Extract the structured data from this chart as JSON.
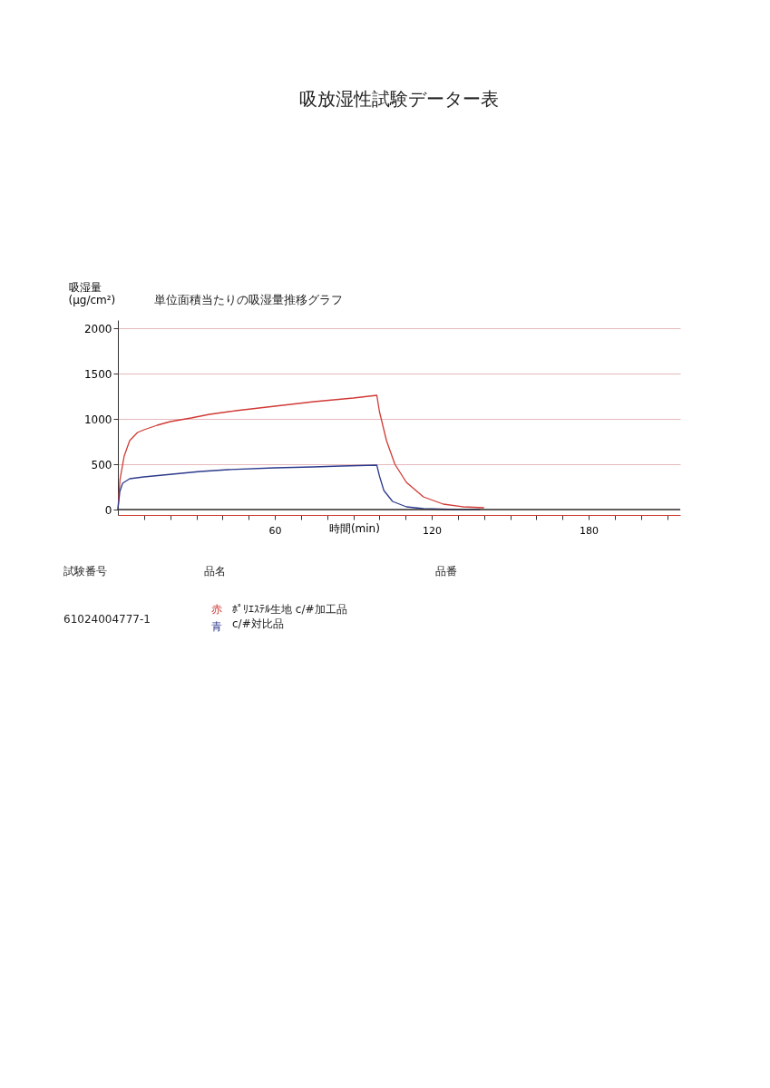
{
  "chart_data": {
    "type": "line",
    "title": "吸放湿性試験データー表",
    "subtitle": "単位面積当たりの吸湿量推移グラフ",
    "xlabel": "時間(min)",
    "ylabel": "吸湿量\n(μg/cm²)",
    "xlim": [
      0,
      215
    ],
    "ylim": [
      -60,
      2090
    ],
    "xticks": [
      {
        "value": 10,
        "label": null
      },
      {
        "value": 20,
        "label": null
      },
      {
        "value": 30,
        "label": null
      },
      {
        "value": 40,
        "label": null
      },
      {
        "value": 50,
        "label": null
      },
      60,
      {
        "value": 70,
        "label": null
      },
      {
        "value": 80,
        "label": null
      },
      {
        "value": 90,
        "label": null
      },
      {
        "value": 100,
        "label": null
      },
      {
        "value": 110,
        "label": null
      },
      120,
      {
        "value": 130,
        "label": null
      },
      {
        "value": 140,
        "label": null
      },
      {
        "value": 150,
        "label": null
      },
      {
        "value": 160,
        "label": null
      },
      {
        "value": 170,
        "label": null
      },
      180,
      {
        "value": 190,
        "label": null
      },
      {
        "value": 200,
        "label": null
      },
      {
        "value": 210,
        "label": null
      }
    ],
    "yticks": [
      0,
      500,
      1000,
      1500,
      2000
    ],
    "grid": "y",
    "line_style": "solid",
    "marker": "none",
    "ref_lines": [
      {
        "axis": "y",
        "value": 0,
        "label": null,
        "color": "#333333"
      }
    ],
    "series": [
      {
        "color": "#d03a35",
        "x": [
          0,
          0.8,
          2.4,
          4.5,
          7.5,
          10,
          15,
          20,
          28,
          35,
          45,
          60,
          75,
          90,
          99,
          100,
          102.7,
          105.9,
          110.3,
          116.8,
          124.4,
          132,
          140
        ],
        "values": [
          0,
          330,
          590,
          760,
          850,
          880,
          930,
          970,
          1010,
          1050,
          1090,
          1140,
          1190,
          1230,
          1260,
          1080,
          760,
          500,
          300,
          140,
          60,
          30,
          20
        ]
      },
      {
        "color": "#2c3a8c",
        "x": [
          0,
          0.75,
          1.8,
          4.5,
          9.9,
          20.7,
          31.5,
          42.2,
          60,
          74.6,
          85.3,
          99,
          100,
          101.7,
          105,
          110.3,
          116.8,
          129.8,
          138.5
        ],
        "values": [
          0,
          200,
          290,
          340,
          360,
          390,
          420,
          440,
          460,
          470,
          480,
          490,
          370,
          210,
          90,
          30,
          10,
          0,
          0
        ]
      }
    ],
    "annotations": [
      "試験番号",
      "品名",
      "品番",
      "61024004777-1",
      "赤",
      "青",
      "ﾎﾟﾘｴｽﾃﾙ生地 c/#加工品",
      "c/#対比品"
    ]
  }
}
